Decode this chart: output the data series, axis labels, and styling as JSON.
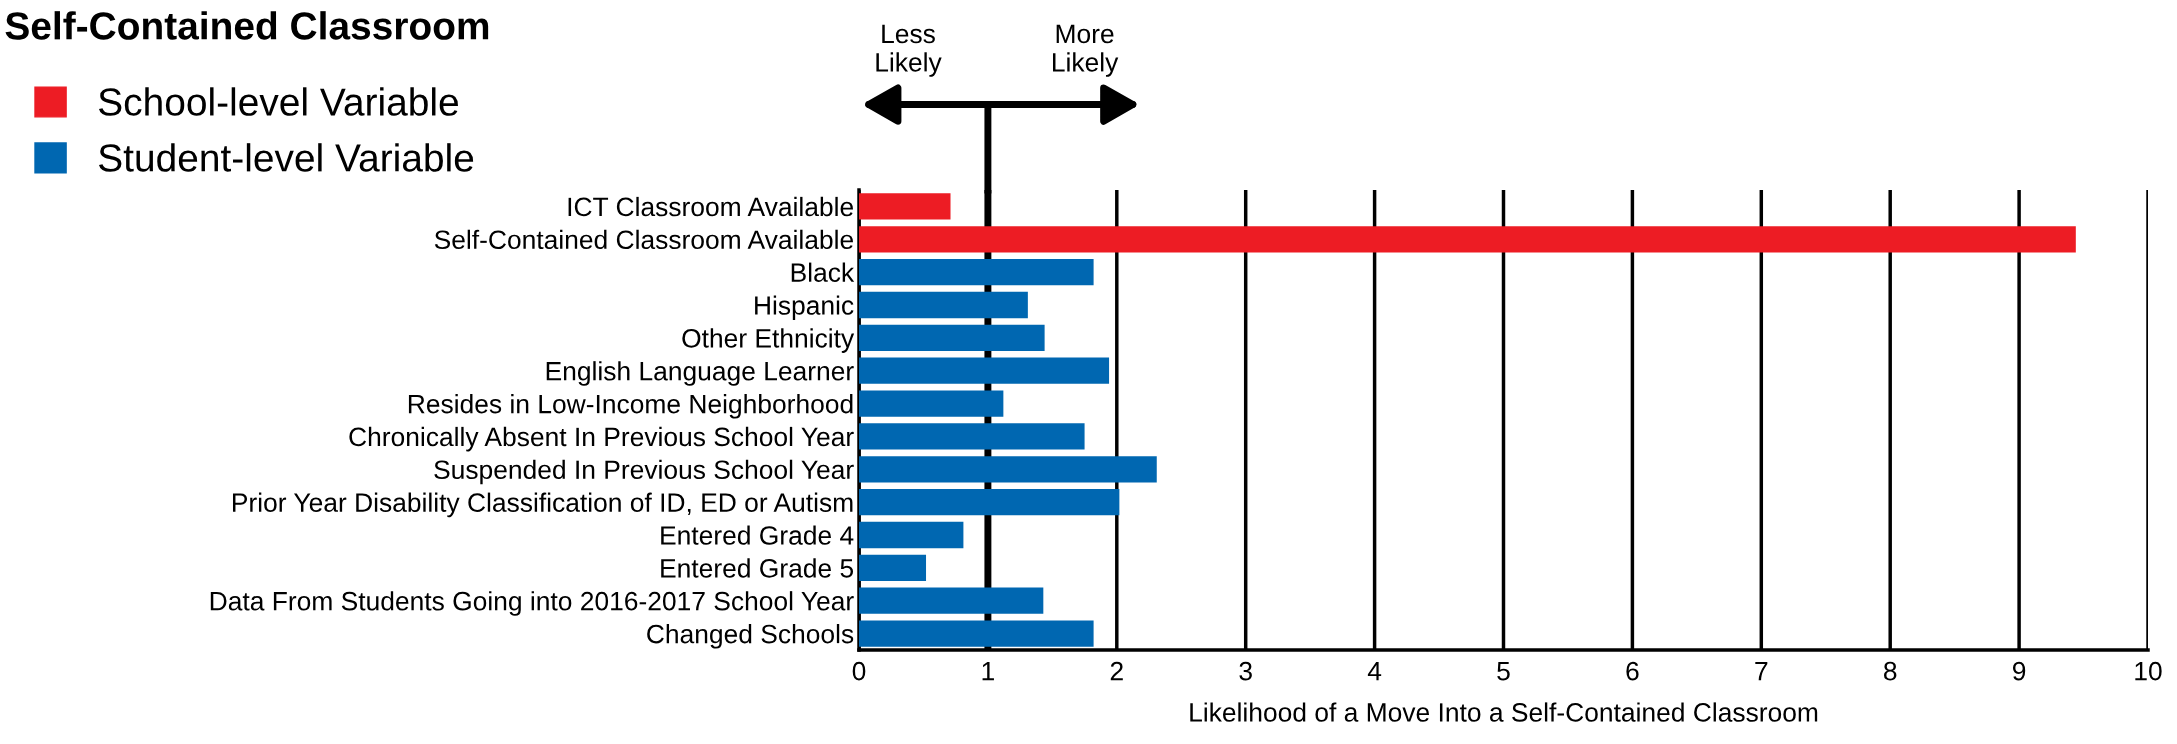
{
  "chart_data": {
    "type": "bar",
    "orientation": "horizontal",
    "title": "Self-Contained Classroom",
    "xlabel": "Likelihood of a Move Into a Self-Contained Classroom",
    "categories": [
      "ICT Classroom Available",
      "Self-Contained Classroom Available",
      "Black",
      "Hispanic",
      "Other Ethnicity",
      "English Language Learner",
      "Resides in Low-Income Neighborhood",
      "Chronically Absent In Previous School Year",
      "Suspended In Previous School Year",
      "Prior Year Disability Classification of ID, ED or Autism",
      "Entered Grade 4",
      "Entered Grade 5",
      "Data From Students Going into 2016-2017 School Year",
      "Changed Schools"
    ],
    "series": [
      {
        "name": "School-level Variable",
        "color": "#ed1c24",
        "values": [
          0.71,
          9.44,
          null,
          null,
          null,
          null,
          null,
          null,
          null,
          null,
          null,
          null,
          null,
          null
        ]
      },
      {
        "name": "Student-level Variable",
        "color": "#0067b1",
        "values": [
          null,
          null,
          1.82,
          1.31,
          1.44,
          1.94,
          1.12,
          1.75,
          2.31,
          2.02,
          0.81,
          0.52,
          1.43,
          1.82
        ]
      }
    ],
    "xlim": [
      0,
      10
    ],
    "xticks": [
      0,
      1,
      2,
      3,
      4,
      5,
      6,
      7,
      8,
      9,
      10
    ],
    "grid": "x",
    "legend": "top left",
    "ref_lines": [
      {
        "axis": "x",
        "value": 1,
        "label": null
      }
    ],
    "annotations": [
      "Less\nLikely",
      "More\nLikely"
    ]
  }
}
